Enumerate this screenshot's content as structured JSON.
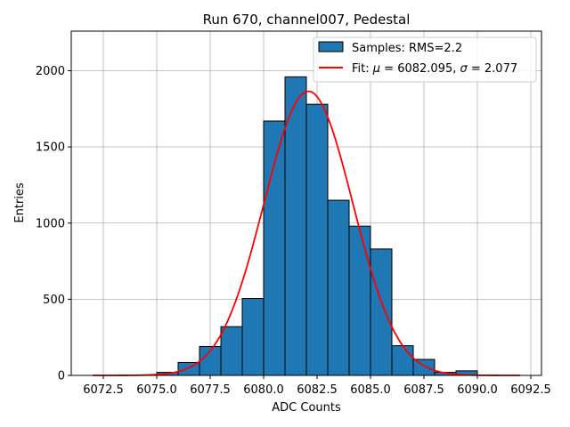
{
  "chart_data": {
    "type": "bar",
    "title": "Run 670, channel007, Pedestal",
    "xlabel": "ADC Counts",
    "ylabel": "Entries",
    "xlim": [
      6071,
      6093
    ],
    "ylim": [
      0,
      2260
    ],
    "grid": true,
    "legend_position": "top-right",
    "x_ticks": [
      6072.5,
      6075.0,
      6077.5,
      6080.0,
      6082.5,
      6085.0,
      6087.5,
      6090.0,
      6092.5
    ],
    "x_tick_labels": [
      "6072.5",
      "6075.0",
      "6077.5",
      "6080.0",
      "6082.5",
      "6085.0",
      "6087.5",
      "6090.0",
      "6092.5"
    ],
    "y_ticks": [
      0,
      500,
      1000,
      1500,
      2000
    ],
    "y_tick_labels": [
      "0",
      "500",
      "1000",
      "1500",
      "2000"
    ],
    "histogram": {
      "name": "Samples: RMS=2.2",
      "color": "#1f77b4",
      "edge_color": "#000000",
      "bins": [
        {
          "x0": 6075,
          "x1": 6076,
          "count": 20
        },
        {
          "x0": 6076,
          "x1": 6077,
          "count": 85
        },
        {
          "x0": 6077,
          "x1": 6078,
          "count": 190
        },
        {
          "x0": 6078,
          "x1": 6079,
          "count": 320
        },
        {
          "x0": 6079,
          "x1": 6080,
          "count": 505
        },
        {
          "x0": 6080,
          "x1": 6081,
          "count": 1670
        },
        {
          "x0": 6081,
          "x1": 6082,
          "count": 1960
        },
        {
          "x0": 6082,
          "x1": 6083,
          "count": 1780
        },
        {
          "x0": 6083,
          "x1": 6084,
          "count": 1150
        },
        {
          "x0": 6084,
          "x1": 6085,
          "count": 980
        },
        {
          "x0": 6085,
          "x1": 6086,
          "count": 830
        },
        {
          "x0": 6086,
          "x1": 6087,
          "count": 195
        },
        {
          "x0": 6087,
          "x1": 6088,
          "count": 105
        },
        {
          "x0": 6088,
          "x1": 6089,
          "count": 20
        },
        {
          "x0": 6089,
          "x1": 6090,
          "count": 30
        }
      ]
    },
    "fit": {
      "name_prefix": "Fit: ",
      "mu_symbol": "μ",
      "mu_text": " = 6082.095, ",
      "sigma_symbol": "σ",
      "sigma_text": " = 2.077",
      "color": "#ff0000",
      "mu": 6082.095,
      "sigma": 2.077,
      "amplitude": 1865,
      "x_range": [
        6072,
        6092
      ]
    }
  }
}
